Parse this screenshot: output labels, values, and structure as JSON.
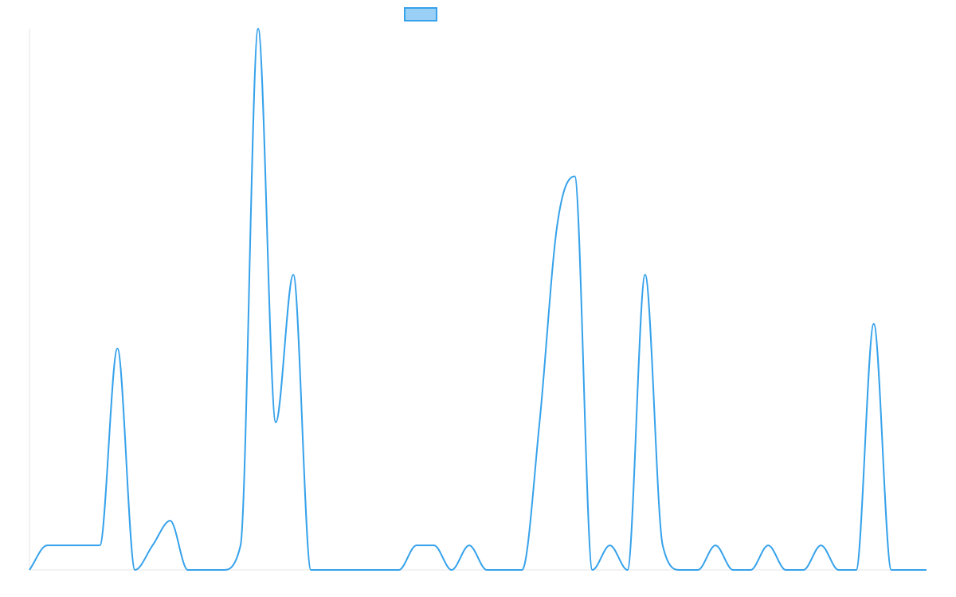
{
  "chart_data": {
    "type": "line",
    "title": "",
    "xlabel": "",
    "ylabel": "",
    "legend": {
      "placement": "top-center",
      "entries": [
        {
          "name": ""
        }
      ]
    },
    "grid": false,
    "x": [
      0,
      1,
      2,
      3,
      4,
      5,
      6,
      7,
      8,
      9,
      10,
      11,
      12,
      13,
      14,
      15,
      16,
      17,
      18,
      19,
      20,
      21,
      22,
      23,
      24,
      25,
      26,
      27,
      28,
      29,
      30,
      31,
      32,
      33,
      34,
      35,
      36,
      37,
      38,
      39,
      40,
      41,
      42,
      43,
      44,
      45,
      46,
      47,
      48,
      49,
      50,
      51
    ],
    "ylim": [
      0,
      22
    ],
    "series": [
      {
        "name": "",
        "color": "#36a2eb",
        "fill": "#9ad0f5",
        "values": [
          0,
          1,
          1,
          1,
          1,
          9,
          0,
          1,
          2,
          0,
          0,
          0,
          1,
          22,
          6,
          12,
          0,
          0,
          0,
          0,
          0,
          0,
          1,
          1,
          0,
          1,
          0,
          0,
          0,
          6,
          14,
          16,
          0,
          1,
          0,
          12,
          1,
          0,
          0,
          1,
          0,
          0,
          1,
          0,
          0,
          1,
          0,
          0,
          10,
          0,
          0,
          0
        ]
      }
    ]
  }
}
